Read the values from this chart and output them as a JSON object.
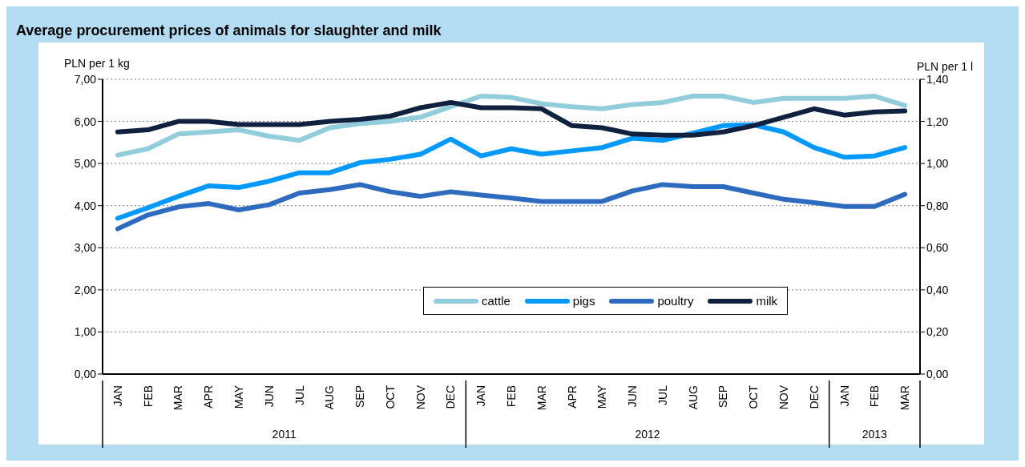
{
  "chart_data": {
    "type": "line",
    "title": "Average procurement prices of animals for slaughter and milk",
    "ylabel": "PLN per 1 kg",
    "y2label": "PLN per 1 l",
    "x": [
      "2011-01",
      "2011-02",
      "2011-03",
      "2011-04",
      "2011-05",
      "2011-06",
      "2011-07",
      "2011-08",
      "2011-09",
      "2011-10",
      "2011-11",
      "2011-12",
      "2012-01",
      "2012-02",
      "2012-03",
      "2012-04",
      "2012-05",
      "2012-06",
      "2012-07",
      "2012-08",
      "2012-09",
      "2012-10",
      "2012-11",
      "2012-12",
      "2013-01",
      "2013-02",
      "2013-03"
    ],
    "xlim": [
      "2010-12-16",
      "2013-03-16"
    ],
    "annotations": [
      "2011",
      "2012",
      "2013"
    ],
    "xticks": [
      {
        "value": "2011-01",
        "label": "JAN"
      },
      {
        "value": "2011-02",
        "label": "FEB"
      },
      {
        "value": "2011-03",
        "label": "MAR"
      },
      {
        "value": "2011-04",
        "label": "APR"
      },
      {
        "value": "2011-05",
        "label": "MAY"
      },
      {
        "value": "2011-06",
        "label": "JUN"
      },
      {
        "value": "2011-07",
        "label": "JUL"
      },
      {
        "value": "2011-08",
        "label": "AUG"
      },
      {
        "value": "2011-09",
        "label": "SEP"
      },
      {
        "value": "2011-10",
        "label": "OCT"
      },
      {
        "value": "2011-11",
        "label": "NOV"
      },
      {
        "value": "2011-12",
        "label": "DEC"
      },
      {
        "value": "2012-01",
        "label": "JAN"
      },
      {
        "value": "2012-02",
        "label": "FEB"
      },
      {
        "value": "2012-03",
        "label": "MAR"
      },
      {
        "value": "2012-04",
        "label": "APR"
      },
      {
        "value": "2012-05",
        "label": "MAY"
      },
      {
        "value": "2012-06",
        "label": "JUN"
      },
      {
        "value": "2012-07",
        "label": "JUL"
      },
      {
        "value": "2012-08",
        "label": "AUG"
      },
      {
        "value": "2012-09",
        "label": "SEP"
      },
      {
        "value": "2012-10",
        "label": "OCT"
      },
      {
        "value": "2012-11",
        "label": "NOV"
      },
      {
        "value": "2012-12",
        "label": "DEC"
      },
      {
        "value": "2013-01",
        "label": "JAN"
      },
      {
        "value": "2013-02",
        "label": "FEB"
      },
      {
        "value": "2013-03",
        "label": "MAR"
      }
    ],
    "ylim": [
      0,
      7
    ],
    "yticks": [
      {
        "value": 0,
        "label": "0,00"
      },
      {
        "value": 1,
        "label": "1,00"
      },
      {
        "value": 2,
        "label": "2,00"
      },
      {
        "value": 3,
        "label": "3,00"
      },
      {
        "value": 4,
        "label": "4,00"
      },
      {
        "value": 5,
        "label": "5,00"
      },
      {
        "value": 6,
        "label": "6,00"
      },
      {
        "value": 7,
        "label": "7,00"
      }
    ],
    "y2lim": [
      0,
      1.4
    ],
    "y2ticks": [
      {
        "value": 0,
        "label": "0,00"
      },
      {
        "value": 0.2,
        "label": "0,20"
      },
      {
        "value": 0.4,
        "label": "0,40"
      },
      {
        "value": 0.6,
        "label": "0,60"
      },
      {
        "value": 0.8,
        "label": "0,80"
      },
      {
        "value": 1.0,
        "label": "1,00"
      },
      {
        "value": 1.2,
        "label": "1,20"
      },
      {
        "value": 1.4,
        "label": "1,40"
      }
    ],
    "series": [
      {
        "name": "cattle",
        "color": "#92cddc",
        "values": [
          5.2,
          5.35,
          5.7,
          5.75,
          5.8,
          5.65,
          5.55,
          5.85,
          5.95,
          6.0,
          6.1,
          6.35,
          6.6,
          6.57,
          6.42,
          6.35,
          6.3,
          6.4,
          6.45,
          6.6,
          6.6,
          6.45,
          6.55,
          6.55,
          6.55,
          6.6,
          6.38
        ]
      },
      {
        "name": "pigs",
        "color": "#0099ff",
        "values": [
          3.7,
          3.95,
          4.22,
          4.47,
          4.43,
          4.58,
          4.78,
          4.78,
          5.02,
          5.1,
          5.22,
          5.58,
          5.18,
          5.35,
          5.22,
          5.3,
          5.38,
          5.6,
          5.55,
          5.72,
          5.9,
          5.92,
          5.75,
          5.38,
          5.15,
          5.18,
          5.38
        ]
      },
      {
        "name": "poultry",
        "color": "#2e6bbf",
        "values": [
          3.45,
          3.78,
          3.97,
          4.05,
          3.9,
          4.02,
          4.3,
          4.38,
          4.5,
          4.33,
          4.22,
          4.33,
          4.25,
          4.18,
          4.1,
          4.1,
          4.1,
          4.35,
          4.5,
          4.45,
          4.45,
          4.3,
          4.15,
          4.07,
          3.98,
          3.98,
          4.27
        ]
      },
      {
        "name": "milk",
        "color": "#10213f",
        "axis": "y2",
        "values": [
          1.15,
          1.16,
          1.2,
          1.2,
          1.185,
          1.185,
          1.185,
          1.2,
          1.21,
          1.225,
          1.265,
          1.29,
          1.265,
          1.265,
          1.26,
          1.18,
          1.17,
          1.14,
          1.135,
          1.135,
          1.15,
          1.18,
          1.22,
          1.26,
          1.23,
          1.245,
          1.25
        ]
      }
    ],
    "grid": "y",
    "legend": "bottom",
    "marker": "none",
    "line_style": "solid"
  }
}
